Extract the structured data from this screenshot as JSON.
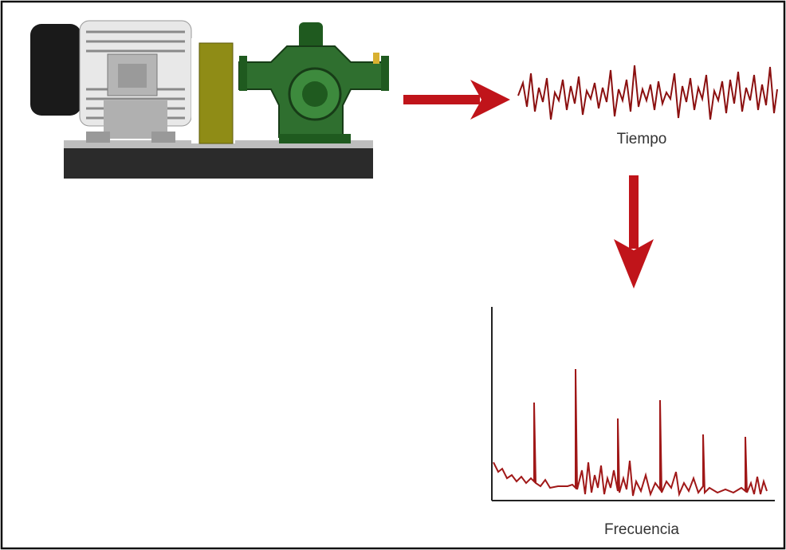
{
  "labels": {
    "time": "Tiempo",
    "frequency": "Frecuencia"
  }
}
